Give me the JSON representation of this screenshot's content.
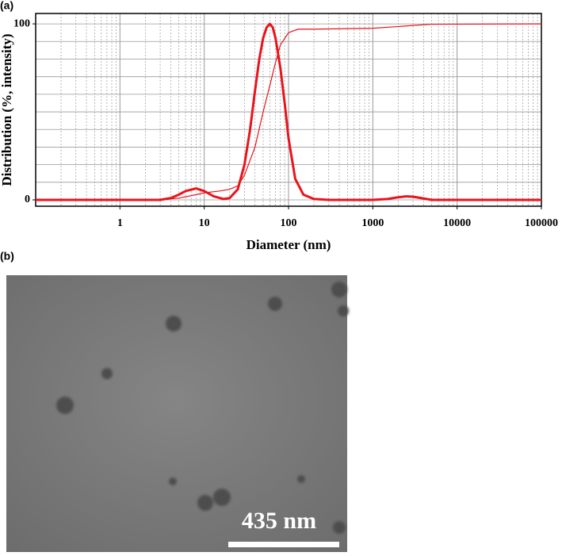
{
  "panel_labels": {
    "a": "(a)",
    "b": "(b)"
  },
  "chart_data": {
    "type": "line",
    "x_label": "Diameter (nm)",
    "y_label": "Distribution (%, intensity)",
    "xscale": "log",
    "xlim": [
      0.1,
      100000
    ],
    "xticks": [
      1,
      10,
      100,
      1000,
      10000,
      100000
    ],
    "ylim": [
      -3.6,
      105.9
    ],
    "yticks": [
      0,
      100
    ],
    "yminorticks": [
      10,
      20,
      30,
      40,
      50,
      60,
      70,
      80,
      90
    ],
    "grid": true,
    "series": [
      {
        "color": "#e8141c",
        "width": 3,
        "x": [
          0.1,
          3,
          4,
          5,
          6,
          8,
          10,
          13,
          17,
          20,
          25,
          30,
          35,
          40,
          45,
          50,
          55,
          60,
          65,
          70,
          80,
          90,
          100,
          120,
          150,
          200,
          300,
          1000,
          1500,
          2000,
          2500,
          3000,
          4000,
          5000,
          100000
        ],
        "values": [
          0,
          0,
          1,
          3,
          5,
          6.5,
          5,
          2,
          0.5,
          1,
          6,
          20,
          40,
          62,
          80,
          92,
          98,
          100,
          98,
          92,
          75,
          55,
          35,
          12,
          3,
          0.5,
          0,
          0,
          0.5,
          1.5,
          2,
          1.8,
          0.8,
          0,
          0
        ]
      },
      {
        "color": "#e8141c",
        "width": 1.2,
        "x": [
          0.1,
          3,
          5,
          8,
          10,
          15,
          20,
          25,
          30,
          40,
          50,
          60,
          70,
          80,
          100,
          130,
          200,
          1000,
          2000,
          5000,
          100000
        ],
        "values": [
          0,
          0,
          1,
          3,
          4,
          5,
          6,
          8,
          14,
          30,
          50,
          65,
          78,
          88,
          95,
          97,
          97,
          97.5,
          98.5,
          99.8,
          100
        ]
      }
    ]
  },
  "image": {
    "scale_bar_label": "435 nm"
  }
}
